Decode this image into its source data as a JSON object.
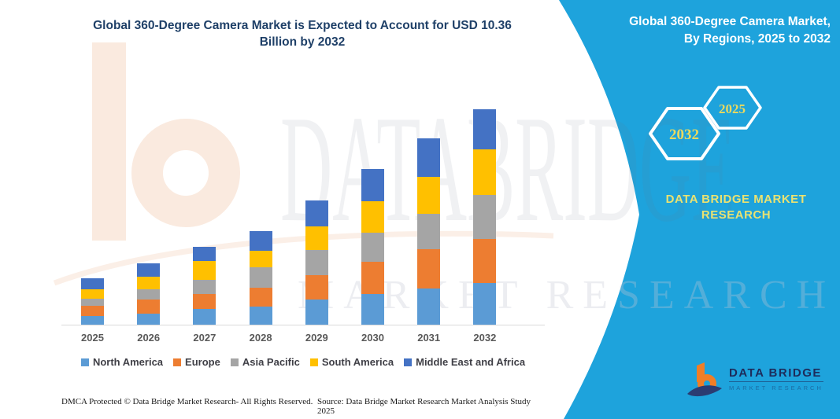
{
  "page": {
    "title_lines": [
      "Global 360-Degree Camera Market is Expected to Account for USD 10.36",
      "Billion by 2032"
    ]
  },
  "side_panel": {
    "panel_color": "#1EA3DC",
    "accent_text_color": "#E9E272",
    "heading_lines": [
      "Global 360-Degree Camera Market,",
      "By Regions, 2025 to 2032"
    ],
    "hexagons": [
      {
        "label": "2032"
      },
      {
        "label": "2025"
      }
    ],
    "brand_text_lines": [
      "DATA BRIDGE MARKET",
      "RESEARCH"
    ],
    "logo": {
      "name": "DATA BRIDGE",
      "tagline": "MARKET RESEARCH"
    }
  },
  "watermark": {
    "line1": "DATABRIDGE",
    "line2": "MARKET RESEARCH"
  },
  "footer": {
    "left": "DMCA Protected © Data Bridge Market Research-  All Rights Reserved.",
    "source": "Source: Data Bridge Market Research  Market Analysis Study 2025"
  },
  "chart_data": {
    "type": "bar",
    "subtype": "stacked-vertical",
    "title": "Global 360-Degree Camera Market is Expected to Account for USD 10.36 Billion by 2032",
    "unit": "USD Billion",
    "xlabel": "",
    "ylabel": "",
    "ylim": [
      0,
      11
    ],
    "grid": false,
    "y_axis_visible": false,
    "legend_position": "bottom",
    "categories": [
      "2025",
      "2026",
      "2027",
      "2028",
      "2029",
      "2030",
      "2031",
      "2032"
    ],
    "series": [
      {
        "name": "North America",
        "color": "#5B9BD5",
        "values": [
          0.42,
          0.53,
          0.76,
          0.87,
          1.21,
          1.47,
          1.74,
          2.0
        ]
      },
      {
        "name": "Europe",
        "color": "#ED7D31",
        "values": [
          0.49,
          0.68,
          0.72,
          0.91,
          1.17,
          1.55,
          1.89,
          2.12
        ]
      },
      {
        "name": "Asia Pacific",
        "color": "#A5A5A5",
        "values": [
          0.34,
          0.49,
          0.68,
          0.98,
          1.21,
          1.4,
          1.7,
          2.12
        ]
      },
      {
        "name": "South America",
        "color": "#FFC000",
        "values": [
          0.45,
          0.6,
          0.91,
          0.79,
          1.13,
          1.51,
          1.78,
          2.19
        ]
      },
      {
        "name": "Middle East and Africa",
        "color": "#4472C4",
        "values": [
          0.53,
          0.64,
          0.68,
          0.95,
          1.25,
          1.55,
          1.85,
          1.93
        ]
      }
    ],
    "totals": [
      2.23,
      2.94,
      3.75,
      4.5,
      5.97,
      7.48,
      8.96,
      10.36
    ],
    "annotations": [
      "USD 10.36 Billion by 2032"
    ]
  }
}
